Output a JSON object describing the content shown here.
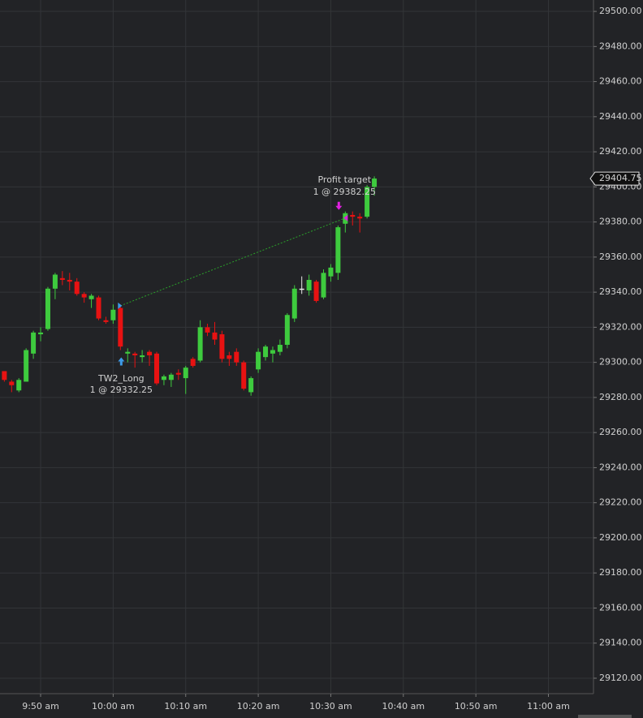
{
  "chart_data": {
    "type": "candlestick",
    "x": [
      585,
      586,
      587,
      588,
      589,
      590,
      591,
      592,
      593,
      594,
      595,
      596,
      597,
      598,
      599,
      600,
      601,
      602,
      603,
      604,
      605,
      606,
      607,
      608,
      609,
      610,
      611,
      612,
      613,
      614,
      615,
      616,
      617,
      618,
      619,
      620,
      621,
      622,
      623,
      624,
      625,
      626,
      627,
      628,
      629,
      630,
      631,
      632,
      633,
      634,
      635,
      636
    ],
    "open": [
      29295,
      29289,
      29284,
      29289,
      29305,
      29316,
      29319,
      29342,
      29348,
      29347,
      29346,
      29339,
      29336,
      29337,
      29324,
      29324,
      29331,
      29305,
      29305,
      29303,
      29306,
      29305,
      29290,
      29290,
      29294,
      29291,
      29302,
      29301,
      29320,
      29317,
      29316,
      29304,
      29306,
      29300,
      29283,
      29296,
      29303,
      29305,
      29306,
      29310,
      29325,
      29342,
      29341,
      29346,
      29337,
      29349,
      29351,
      29379,
      29384,
      29383,
      29383,
      29400
    ],
    "high": [
      29295,
      29290,
      29291,
      29308,
      29318,
      29320,
      29343,
      29351,
      29352,
      29351,
      29348,
      29340,
      29339,
      29338,
      29326,
      29333,
      29333,
      29308,
      29306,
      29307,
      29307,
      29306,
      29293,
      29294,
      29296,
      29298,
      29303,
      29324,
      29322,
      29323,
      29318,
      29306,
      29308,
      29301,
      29292,
      29308,
      29310,
      29309,
      29313,
      29328,
      29344,
      29349,
      29350,
      29347,
      29353,
      29356,
      29378,
      29386,
      29386,
      29385,
      29401,
      29406
    ],
    "low": [
      29289,
      29283,
      29283,
      29289,
      29302,
      29312,
      29318,
      29336,
      29344,
      29341,
      29338,
      29334,
      29331,
      29324,
      29322,
      29322,
      29307,
      29300,
      29297,
      29300,
      29298,
      29287,
      29287,
      29286,
      29290,
      29282,
      29297,
      29300,
      29315,
      29310,
      29300,
      29298,
      29298,
      29284,
      29281,
      29294,
      29301,
      29300,
      29304,
      29308,
      29323,
      29339,
      29338,
      29334,
      29336,
      29346,
      29347,
      29374,
      29378,
      29374,
      29382,
      29395
    ],
    "close": [
      29290,
      29287,
      29290,
      29307,
      29317,
      29317,
      29342,
      29350,
      29347,
      29346,
      29339,
      29337,
      29338,
      29325,
      29323,
      29330,
      29309,
      29306,
      29304,
      29304,
      29304,
      29288,
      29292,
      29293,
      29293,
      29297,
      29298,
      29320,
      29317,
      29313,
      29302,
      29302,
      29300,
      29285,
      29291,
      29306,
      29309,
      29307,
      29310,
      29327,
      29342,
      29342,
      29347,
      29335,
      29351,
      29354,
      29377,
      29385,
      29383,
      29382,
      29400,
      29404.75
    ],
    "up_color": "#3ecb3e",
    "down_color": "#e81212",
    "doji_color": "#e8e8e8",
    "xlim": [
      584.4,
      666.1
    ],
    "ylim": [
      29111.2,
      29506.5
    ],
    "xticks": [
      {
        "value": 590,
        "label": "9:50 am"
      },
      {
        "value": 600,
        "label": "10:00 am"
      },
      {
        "value": 610,
        "label": "10:10 am"
      },
      {
        "value": 620,
        "label": "10:20 am"
      },
      {
        "value": 630,
        "label": "10:30 am"
      },
      {
        "value": 640,
        "label": "10:40 am"
      },
      {
        "value": 650,
        "label": "10:50 am"
      },
      {
        "value": 660,
        "label": "11:00 am"
      }
    ],
    "yticks": [
      {
        "value": 29120,
        "label": "29120.00"
      },
      {
        "value": 29140,
        "label": "29140.00"
      },
      {
        "value": 29160,
        "label": "29160.00"
      },
      {
        "value": 29180,
        "label": "29180.00"
      },
      {
        "value": 29200,
        "label": "29200.00"
      },
      {
        "value": 29220,
        "label": "29220.00"
      },
      {
        "value": 29240,
        "label": "29240.00"
      },
      {
        "value": 29260,
        "label": "29260.00"
      },
      {
        "value": 29280,
        "label": "29280.00"
      },
      {
        "value": 29300,
        "label": "29300.00"
      },
      {
        "value": 29320,
        "label": "29320.00"
      },
      {
        "value": 29340,
        "label": "29340.00"
      },
      {
        "value": 29360,
        "label": "29360.00"
      },
      {
        "value": 29380,
        "label": "29380.00"
      },
      {
        "value": 29400,
        "label": "29400.00"
      },
      {
        "value": 29420,
        "label": "29420.00"
      },
      {
        "value": 29440,
        "label": "29440.00"
      },
      {
        "value": 29460,
        "label": "29460.00"
      },
      {
        "value": 29480,
        "label": "29480.00"
      },
      {
        "value": 29500,
        "label": "29500.00"
      }
    ],
    "grid": true,
    "last_price": 29404.75,
    "entry": {
      "time": 601,
      "price": 29332.25,
      "name": "TW2_Long",
      "text": "1 @ 29332.25",
      "color": "#3d9be9"
    },
    "exit": {
      "time": 632,
      "price": 29382.25,
      "name": "Profit target",
      "text": "1 @ 29382.25",
      "color": "#e020e0"
    },
    "trade_line_color": "#2aa02a"
  }
}
